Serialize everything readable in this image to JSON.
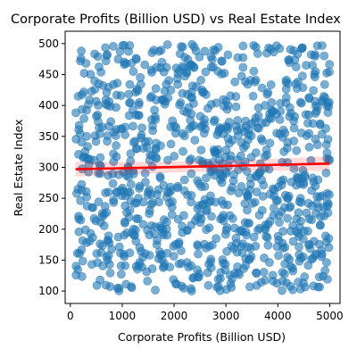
{
  "chart_data": {
    "type": "scatter",
    "title": "Corporate Profits (Billion USD) vs Real Estate Index",
    "xlabel": "Corporate Profits (Billion USD)",
    "ylabel": "Real Estate Index",
    "xlim": [
      -100,
      5200
    ],
    "ylim": [
      80,
      520
    ],
    "x_ticks": [
      0,
      1000,
      2000,
      3000,
      4000,
      5000
    ],
    "y_ticks": [
      100,
      150,
      200,
      250,
      300,
      350,
      400,
      450,
      500
    ],
    "grid": false,
    "point_count": 1000,
    "point_color": "#1f77b4",
    "regression": {
      "color": "#ff0000",
      "x": [
        100,
        5000
      ],
      "y": [
        297,
        306
      ],
      "ci_halfwidth_at_ends": 12
    },
    "x_range": [
      100,
      5000
    ],
    "y_range": [
      100,
      500
    ]
  }
}
